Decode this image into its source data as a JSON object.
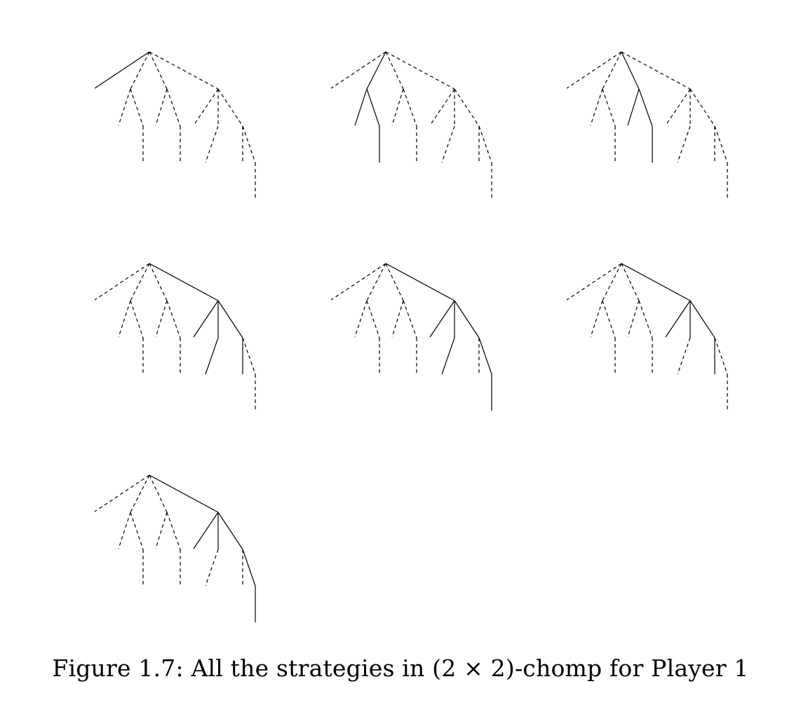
{
  "figure": {
    "caption": "Figure 1.7: All the strategies in (2 × 2)-chomp for Player 1",
    "edge_order": [
      "root-a",
      "root-b",
      "root-c",
      "root-d",
      "b-e",
      "b-f",
      "f-g",
      "c-h",
      "c-i",
      "i-j",
      "d-k",
      "d-l",
      "d-m",
      "k-n",
      "m-o",
      "m-p",
      "p-q"
    ],
    "strategies": [
      {
        "label": "strategy-1",
        "solid_edges": [
          "root-a"
        ]
      },
      {
        "label": "strategy-2",
        "solid_edges": [
          "root-b",
          "b-e",
          "b-f",
          "f-g"
        ]
      },
      {
        "label": "strategy-3",
        "solid_edges": [
          "root-c",
          "c-h",
          "c-i",
          "i-j"
        ]
      },
      {
        "label": "strategy-4",
        "solid_edges": [
          "root-d",
          "d-k",
          "d-l",
          "d-m",
          "k-n",
          "m-o"
        ]
      },
      {
        "label": "strategy-5",
        "solid_edges": [
          "root-d",
          "d-k",
          "d-l",
          "d-m",
          "k-n",
          "m-p",
          "p-q"
        ]
      },
      {
        "label": "strategy-6",
        "solid_edges": [
          "root-d",
          "d-k",
          "d-l",
          "d-m",
          "m-o"
        ]
      },
      {
        "label": "strategy-7",
        "solid_edges": [
          "root-d",
          "d-k",
          "d-l",
          "d-m",
          "m-p",
          "p-q"
        ]
      }
    ]
  }
}
